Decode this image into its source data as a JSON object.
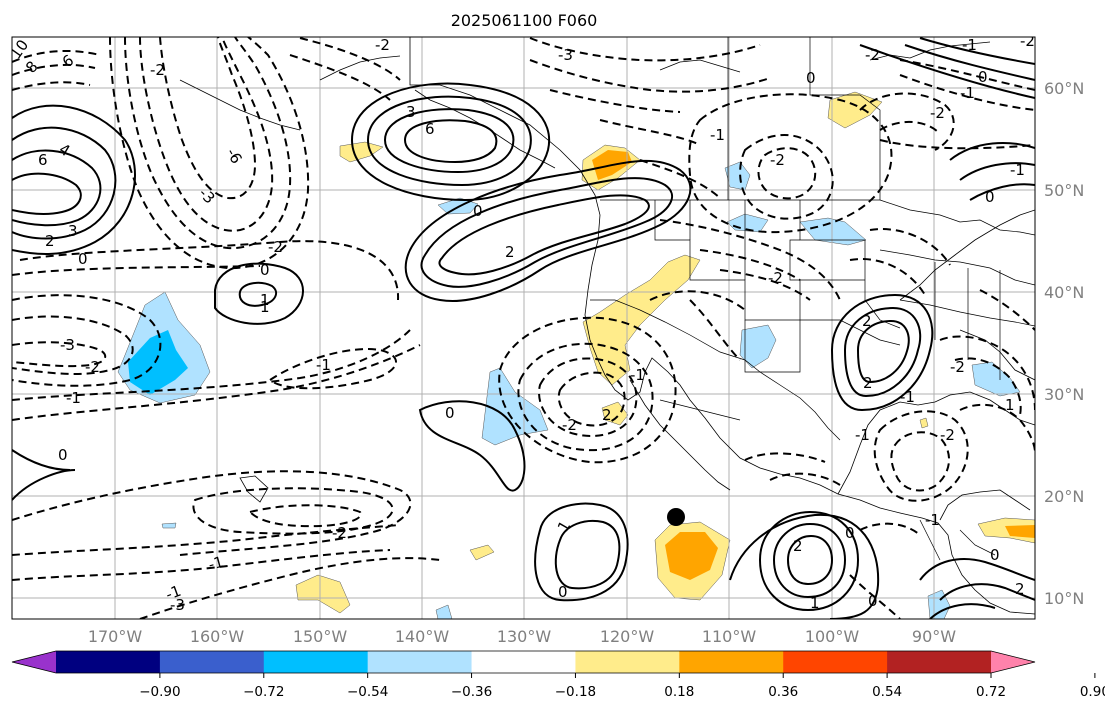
{
  "title": "2025061100 F060",
  "map": {
    "lon_labels": [
      "170°W",
      "160°W",
      "150°W",
      "140°W",
      "130°W",
      "120°W",
      "110°W",
      "100°W",
      "90°W"
    ],
    "lat_labels": [
      "60°N",
      "50°N",
      "40°N",
      "30°N",
      "20°N",
      "10°N"
    ],
    "marker": "storm-center-dot"
  },
  "colorbar": {
    "ticks": [
      "−0.90",
      "−0.72",
      "−0.54",
      "−0.36",
      "−0.18",
      "0.18",
      "0.36",
      "0.54",
      "0.72",
      "0.90"
    ],
    "colors": [
      "#9932cc",
      "#000080",
      "#3a5fcd",
      "#00bfff",
      "#b0e2ff",
      "#ffffff",
      "#ffec8b",
      "#ffa500",
      "#ff4500",
      "#b22222",
      "#ff82ab"
    ]
  },
  "contour_labels": [
    "10",
    "8",
    "6",
    "6",
    "4",
    "3",
    "2",
    "3",
    "6",
    "-3",
    "-2",
    "-6",
    "-3",
    "-2",
    "-3",
    "0",
    "-1",
    "-2",
    "-2",
    "-1",
    "-2",
    "0",
    "2",
    "1",
    "0",
    "-1",
    "0",
    "-1",
    "-3",
    "-2",
    "-1",
    "0",
    "2",
    "1",
    "-2",
    "0",
    "-1",
    "-2",
    "-2",
    "0",
    "-2",
    "-1",
    "0",
    "-1",
    "-2",
    "0",
    "1",
    "-2",
    "1",
    "2",
    "-1",
    "2",
    "1",
    "2",
    "0",
    "-1",
    "-2",
    "0",
    "0",
    "-1",
    "2",
    "-1"
  ]
}
